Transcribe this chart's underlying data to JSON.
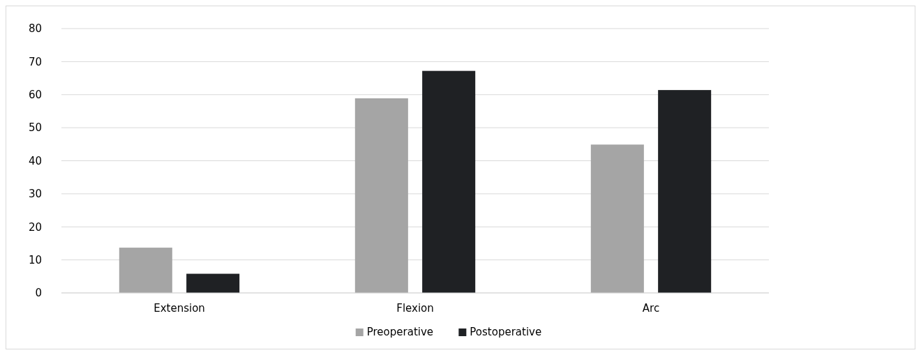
{
  "chart_data": {
    "type": "bar",
    "categories": [
      "Extension",
      "Flexion",
      "Arc"
    ],
    "series": [
      {
        "name": "Preoperative",
        "color": "#a5a5a5",
        "values": [
          13.7,
          58.9,
          44.9
        ]
      },
      {
        "name": "Postoperative",
        "color": "#1f2124",
        "values": [
          5.8,
          67.2,
          61.4
        ]
      }
    ],
    "ylim": [
      0,
      80
    ],
    "yticks": [
      0,
      10,
      20,
      30,
      40,
      50,
      60,
      70,
      80
    ],
    "grid": "y",
    "legend": "bottom"
  }
}
